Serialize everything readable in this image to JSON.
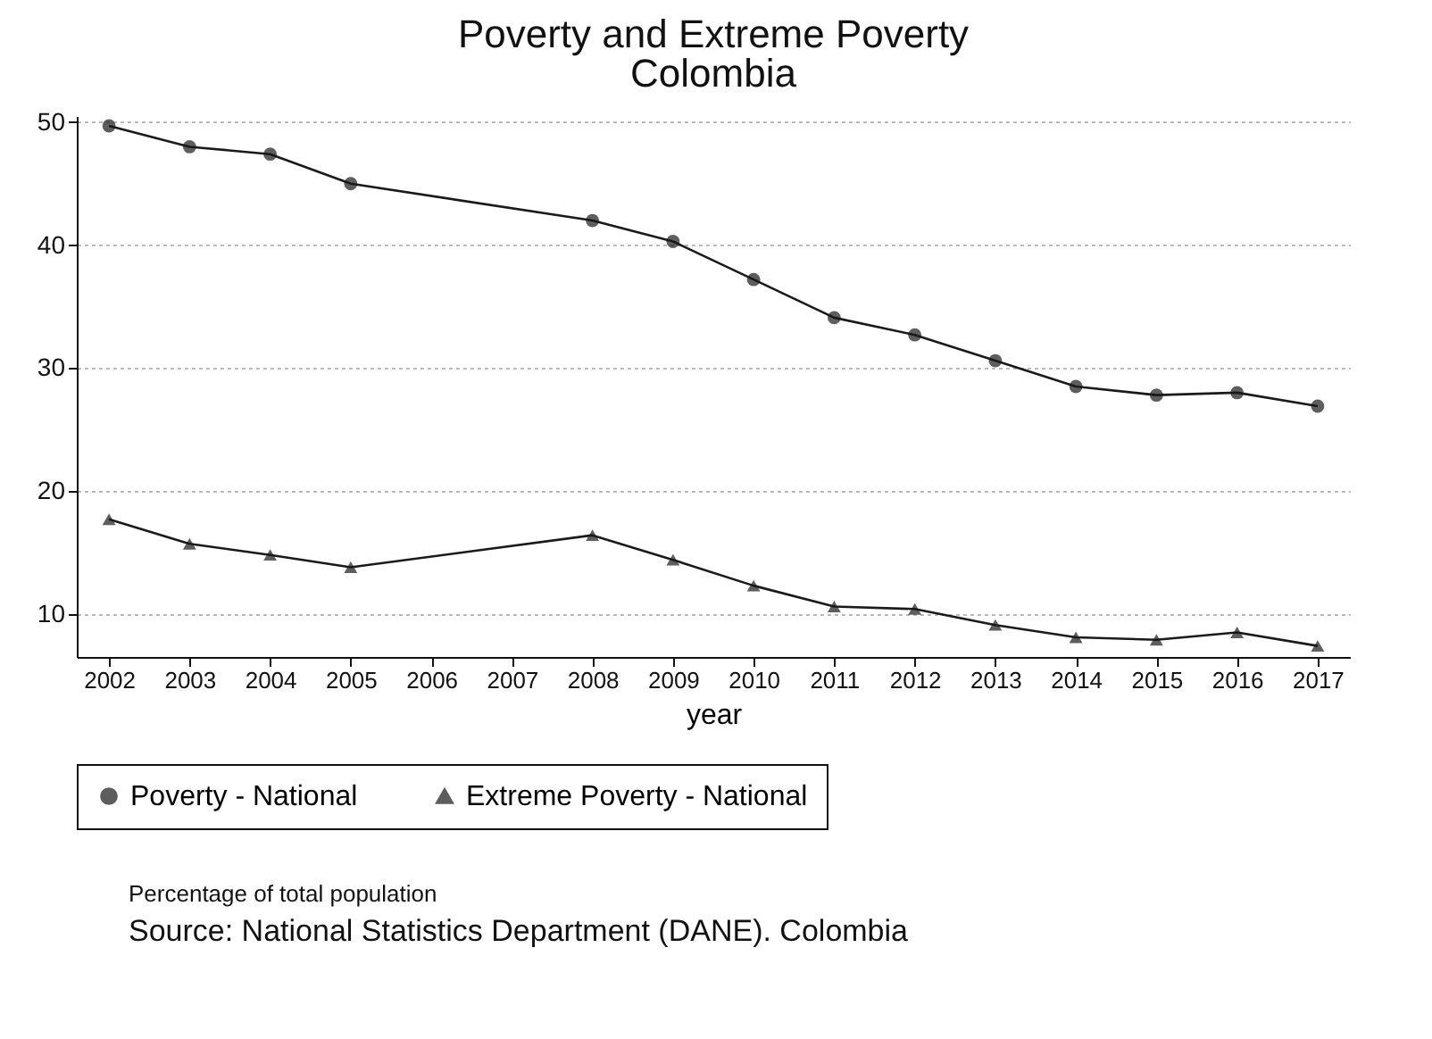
{
  "chart_data": {
    "type": "line",
    "title": "Poverty and Extreme Poverty",
    "subtitle": "Colombia",
    "xlabel": "year",
    "x": [
      2002,
      2003,
      2004,
      2005,
      2008,
      2009,
      2010,
      2011,
      2012,
      2013,
      2014,
      2015,
      2016,
      2017
    ],
    "series": [
      {
        "name": "Poverty - National",
        "color": "#1a1a1a",
        "marker": "circle",
        "values": [
          49.7,
          48.0,
          47.4,
          45.0,
          42.0,
          40.3,
          37.2,
          34.1,
          32.7,
          30.6,
          28.5,
          27.8,
          28.0,
          26.9
        ]
      },
      {
        "name": "Extreme Poverty - National",
        "color": "#1a1a1a",
        "marker": "triangle",
        "values": [
          17.7,
          15.7,
          14.8,
          13.8,
          16.4,
          14.4,
          12.3,
          10.6,
          10.4,
          9.1,
          8.1,
          7.9,
          8.5,
          7.4
        ]
      }
    ],
    "xlim": [
      2001.6,
      2017.4
    ],
    "xticks": [
      2002,
      2003,
      2004,
      2005,
      2006,
      2007,
      2008,
      2009,
      2010,
      2011,
      2012,
      2013,
      2014,
      2015,
      2016,
      2017
    ],
    "ylim": [
      6.5,
      50.5
    ],
    "yticks": [
      10,
      20,
      30,
      40,
      50
    ],
    "grid": "y",
    "legend": "bottom",
    "line_style": "solid",
    "annotations": [
      "Percentage of total population",
      "Source: National Statistics Department (DANE). Colombia"
    ]
  }
}
